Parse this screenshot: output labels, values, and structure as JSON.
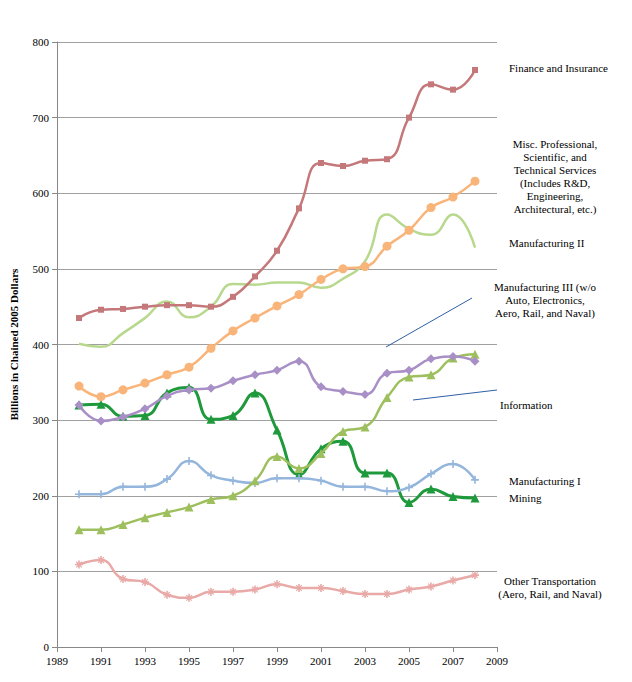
{
  "chart_data": {
    "type": "line",
    "y_label": "Billions in Chained 2005 Dollars",
    "x": [
      1990,
      1991,
      1992,
      1993,
      1994,
      1995,
      1996,
      1997,
      1998,
      1999,
      2000,
      2001,
      2002,
      2003,
      2004,
      2005,
      2006,
      2007,
      2008
    ],
    "xlim": [
      1989,
      2009
    ],
    "xticks": [
      1989,
      1991,
      1993,
      1995,
      1997,
      1999,
      2001,
      2003,
      2005,
      2007,
      2009
    ],
    "ylim": [
      0,
      800
    ],
    "yticks": [
      0,
      100,
      200,
      300,
      400,
      500,
      600,
      700,
      800
    ],
    "grid": true,
    "series": [
      {
        "name": "Finance and Insurance",
        "color": "#c4787a",
        "marker": "dash",
        "values": [
          435,
          446,
          447,
          450,
          452,
          452,
          450,
          463,
          490,
          524,
          580,
          640,
          636,
          643,
          645,
          700,
          744,
          737,
          763
        ]
      },
      {
        "name": "Misc. Professional,\nScientific, and\nTechnical Services\n(Includes R&D,\nEngineering,\nArchitectural, etc.)",
        "color": "#f9b47a",
        "marker": "circle",
        "values": [
          345,
          331,
          340,
          349,
          360,
          370,
          395,
          418,
          435,
          451,
          466,
          486,
          500,
          503,
          530,
          551,
          581,
          595,
          616
        ]
      },
      {
        "name": "Manufacturing II",
        "color": "#b8d88e",
        "marker": "none",
        "values": [
          401,
          397,
          415,
          435,
          457,
          436,
          450,
          480,
          479,
          482,
          482,
          475,
          487,
          510,
          572,
          553,
          545,
          572,
          528
        ]
      },
      {
        "name": "Manufacturing III (w/o\nAuto, Electronics,\nAero, Rail, and Naval)",
        "color": "#a88fc6",
        "marker": "diamond",
        "values": [
          320,
          299,
          304,
          315,
          332,
          340,
          342,
          352,
          360,
          366,
          378,
          344,
          338,
          334,
          362,
          366,
          381,
          384,
          378
        ]
      },
      {
        "name": "Information",
        "color": "#9ebf5e",
        "marker": "triangle",
        "values": [
          155,
          155,
          162,
          171,
          178,
          185,
          195,
          200,
          220,
          252,
          236,
          256,
          285,
          291,
          330,
          357,
          360,
          382,
          387
        ]
      },
      {
        "name": "Manufacturing I",
        "color": "#95b6dc",
        "marker": "cross",
        "values": [
          202,
          202,
          212,
          212,
          222,
          246,
          227,
          220,
          217,
          223,
          223,
          220,
          212,
          212,
          206,
          211,
          229,
          242,
          221
        ]
      },
      {
        "name": "Mining",
        "color": "#1e9a3c",
        "marker": "triangle",
        "values": [
          320,
          321,
          305,
          306,
          336,
          343,
          301,
          306,
          336,
          287,
          228,
          262,
          272,
          230,
          230,
          191,
          209,
          199,
          197
        ]
      },
      {
        "name": "Other Transportation\n(Aero, Rail, and Naval)",
        "color": "#e8a9a7",
        "marker": "star",
        "values": [
          109,
          115,
          90,
          86,
          69,
          65,
          73,
          73,
          76,
          83,
          78,
          78,
          74,
          70,
          70,
          76,
          80,
          88,
          95
        ]
      }
    ]
  }
}
